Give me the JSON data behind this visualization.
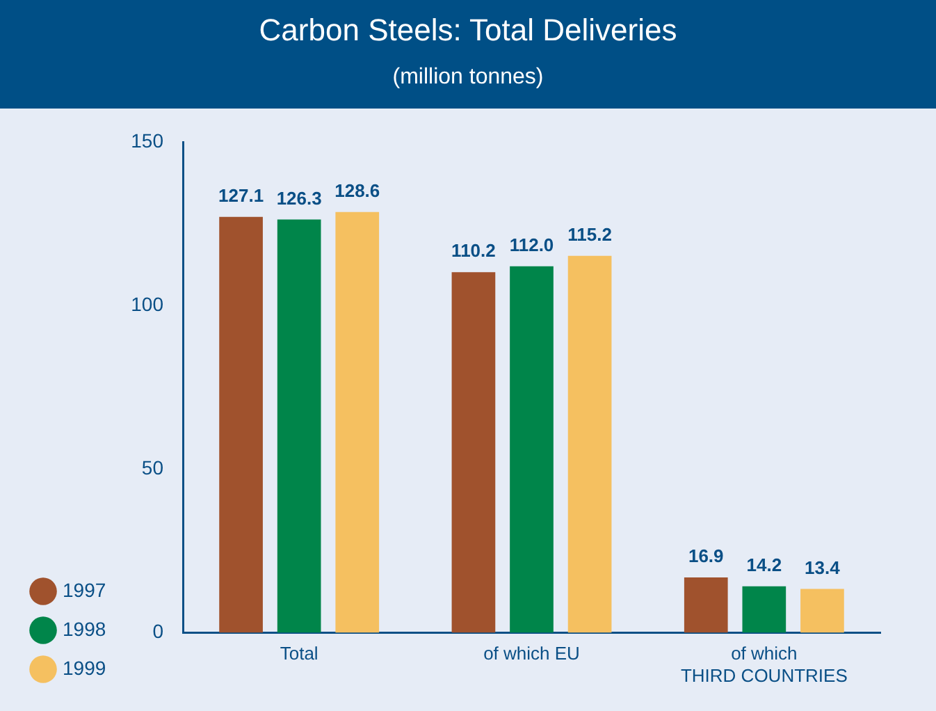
{
  "chart_data": {
    "type": "bar",
    "title": "Carbon Steels: Total Deliveries",
    "subtitle": "(million tonnes)",
    "categories": [
      "Total",
      "of which EU",
      "of which THIRD COUNTRIES"
    ],
    "series": [
      {
        "name": "1997",
        "color": "#a0522d",
        "values": [
          127.1,
          110.2,
          16.9
        ],
        "value_labels": [
          "127.1",
          "110.2",
          "16.9"
        ]
      },
      {
        "name": "1998",
        "color": "#00854a",
        "values": [
          126.3,
          112.0,
          14.2
        ],
        "value_labels": [
          "126.3",
          "112.0",
          "14.2"
        ]
      },
      {
        "name": "1999",
        "color": "#f5c060",
        "values": [
          128.6,
          115.2,
          13.4
        ],
        "value_labels": [
          "128.6",
          "115.2",
          "13.4"
        ]
      }
    ],
    "ylim": [
      0,
      150
    ],
    "yticks": [
      0,
      50,
      100,
      150
    ],
    "grid": false,
    "legend": "bottom left"
  }
}
